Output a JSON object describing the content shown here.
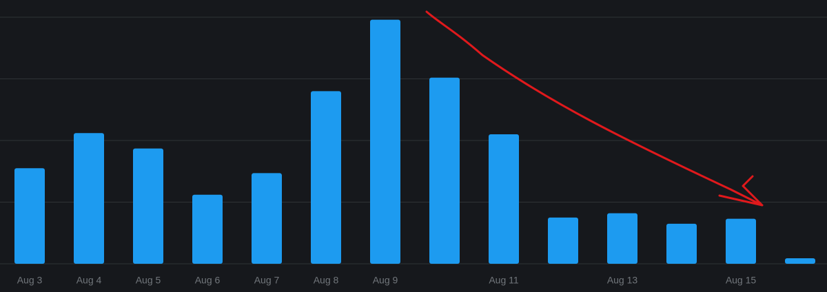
{
  "chart_data": {
    "type": "bar",
    "categories": [
      "Aug 3",
      "Aug 4",
      "Aug 5",
      "Aug 6",
      "Aug 7",
      "Aug 8",
      "Aug 9",
      null,
      "Aug 11",
      null,
      "Aug 13",
      null,
      "Aug 15",
      null
    ],
    "values": [
      1.55,
      2.12,
      1.87,
      1.12,
      1.47,
      2.8,
      3.96,
      3.02,
      2.1,
      0.75,
      0.82,
      0.65,
      0.73,
      0.09
    ],
    "color": "#1d9bf0",
    "ylim": [
      0,
      4
    ],
    "yticks": [
      0,
      1,
      2,
      3,
      4
    ],
    "grid": true
  }
}
